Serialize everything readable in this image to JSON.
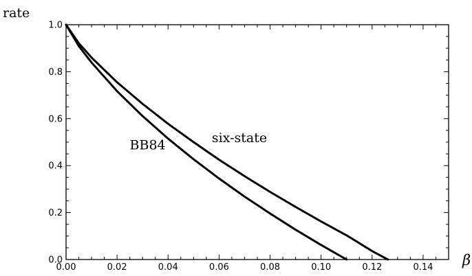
{
  "chart_data": {
    "type": "line",
    "title": "",
    "xlabel": "β",
    "ylabel": "rate",
    "xlim": [
      0,
      0.15
    ],
    "ylim": [
      0,
      1
    ],
    "xticks": [
      "0.00",
      "0.02",
      "0.04",
      "0.06",
      "0.08",
      "0.10",
      "0.12",
      "0.14"
    ],
    "yticks": [
      "0.0",
      "0.2",
      "0.4",
      "0.6",
      "0.8",
      "1.0"
    ],
    "grid": false,
    "series": [
      {
        "name": "BB84",
        "x": [
          0,
          0.005,
          0.01,
          0.02,
          0.03,
          0.04,
          0.05,
          0.06,
          0.07,
          0.08,
          0.09,
          0.1,
          0.11
        ],
        "y": [
          1.0,
          0.909,
          0.839,
          0.717,
          0.611,
          0.515,
          0.427,
          0.345,
          0.268,
          0.196,
          0.127,
          0.062,
          0.0
        ]
      },
      {
        "name": "six-state",
        "x": [
          0,
          0.005,
          0.01,
          0.02,
          0.03,
          0.04,
          0.05,
          0.06,
          0.07,
          0.08,
          0.09,
          0.1,
          0.11,
          0.12,
          0.1262
        ],
        "y": [
          1.0,
          0.921,
          0.86,
          0.755,
          0.663,
          0.578,
          0.5,
          0.425,
          0.355,
          0.288,
          0.224,
          0.162,
          0.103,
          0.036,
          0.0
        ]
      }
    ],
    "annotations": [
      {
        "text": "BB84",
        "x": 0.032,
        "y": 0.47
      },
      {
        "text": "six-state",
        "x": 0.068,
        "y": 0.5
      }
    ]
  }
}
